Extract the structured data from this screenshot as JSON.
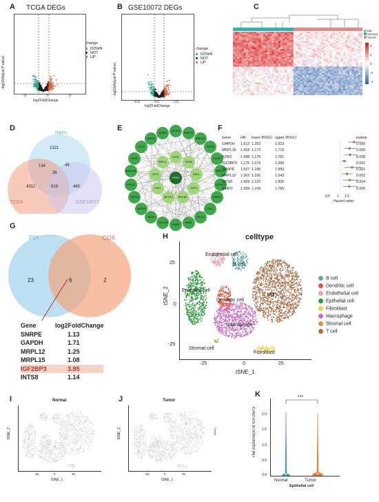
{
  "panels": {
    "A": {
      "label": "A",
      "title": "TCGA DEGs",
      "ylabel": "-log10(Adjust P-value)",
      "xlabel": "log2FoldChange",
      "xticks": [
        "-5",
        "0",
        "5"
      ],
      "yticks": [
        "0",
        "20",
        "40",
        "60",
        "80",
        "100"
      ],
      "legend_title": "change",
      "legend": [
        "DOWN",
        "NOT",
        "UP"
      ]
    },
    "B": {
      "label": "B",
      "title": "GSE10072 DEGs",
      "ylabel": "-log10(Adjust P-value)",
      "xlabel": "log2FoldChange",
      "xticks": [
        "-2.5",
        "0.0",
        "2.5"
      ],
      "legend_title": "change",
      "legend": [
        "DOWN",
        "NOT",
        "UP"
      ]
    },
    "C": {
      "label": "C",
      "legend_title": "group",
      "legend": [
        "Normal",
        "Tumor"
      ],
      "scale": [
        "4",
        "2",
        "0",
        "-2",
        "-4"
      ]
    },
    "D": {
      "label": "D",
      "sets": [
        "RBPs",
        "TCGA",
        "GSE10072"
      ],
      "counts": [
        "1321",
        "134",
        "49",
        "38",
        "4312",
        "919",
        "480"
      ]
    },
    "E": {
      "label": "E",
      "nodes": [
        "RPS6",
        "DUS6",
        "NPM3",
        "GNL3",
        "SOF3",
        "RPL38L",
        "METTL1",
        "PUS7",
        "CKC1",
        "RRP12",
        "EEF1E1",
        "HEATR1",
        "MRPL15",
        "TOP2A",
        "CYCR1",
        "MRPL12",
        "IGF2BP3",
        "SNRPE",
        "CDK1",
        "RPL39",
        "PARN",
        "PKM2C",
        "POLR2E",
        "INTS8",
        "ZNF700",
        "GAPDH",
        "EXOSC",
        "MAGOHB",
        "SZH1",
        "DZH2",
        "BOLA3",
        "NCBP2"
      ]
    },
    "F": {
      "label": "F",
      "headers": [
        "Gene",
        "HR",
        "lower 95%CI",
        "upper 95%CI",
        "pvalue"
      ],
      "rows": [
        [
          "GAPDH",
          "1.613",
          "1.353",
          "1.923",
          "0.000"
        ],
        [
          "MRPL15",
          "1.418",
          "1.172",
          "1.715",
          "0.000"
        ],
        [
          "BZW2",
          "1.438",
          "1.175",
          "1.761",
          "0.000"
        ],
        [
          "IGF2BP3",
          "1.176",
          "1.073",
          "1.289",
          "0.001"
        ],
        [
          "SNRPE",
          "1.527",
          "1.196",
          "1.950",
          "0.001"
        ],
        [
          "MRPL12",
          "1.303",
          "1.100",
          "1.543",
          "0.002"
        ],
        [
          "INTS8",
          "1.429",
          "1.122",
          "1.820",
          "0.004"
        ],
        [
          "AIMP2",
          "1.399",
          "1.109",
          "1.765",
          "0.005"
        ]
      ],
      "axis_ticks": [
        "0.5",
        "1",
        "1.5"
      ],
      "axis_label": "Hazard ratios"
    },
    "G": {
      "label": "G",
      "sets": [
        "PPI",
        "COX"
      ],
      "counts": [
        "23",
        "6",
        "2"
      ],
      "table_header": [
        "Gene",
        "log2FoldChange"
      ],
      "table": [
        [
          "SNRPE",
          "1.13"
        ],
        [
          "GAPDH",
          "1.71"
        ],
        [
          "MRPL12",
          "1.25"
        ],
        [
          "MRPL15",
          "1.08"
        ],
        [
          "IGF2BP3",
          "3.95"
        ],
        [
          "INTS8",
          "1.14"
        ]
      ]
    },
    "H": {
      "label": "H",
      "title": "celltype",
      "xlabel": "tSNE_1",
      "ylabel": "tSNE_2",
      "xticks": [
        "-25",
        "0",
        "25"
      ],
      "yticks": [
        "25",
        "0",
        "-25"
      ],
      "clusters": [
        "Endothelial cell",
        "B cell",
        "Epithelial cell",
        "Dendritic cell",
        "T cell",
        "Macrophage",
        "Stromal cell",
        "Fibroblast"
      ],
      "legend": [
        {
          "name": "B cell",
          "color": "#5aa9a7"
        },
        {
          "name": "Dendritic cell",
          "color": "#e8503a"
        },
        {
          "name": "Endothelial cell",
          "color": "#e8a5b4"
        },
        {
          "name": "Epithelial cell",
          "color": "#2e9b3e"
        },
        {
          "name": "Fibroblast",
          "color": "#f0d23a"
        },
        {
          "name": "Macrophage",
          "color": "#c46fc1"
        },
        {
          "name": "Stromal cell",
          "color": "#d19a3a"
        },
        {
          "name": "T cell",
          "color": "#a9704a"
        }
      ]
    },
    "I": {
      "label": "I",
      "title": "Normal",
      "xlabel": "tSNE_1",
      "ylabel": "tSNE_2",
      "xticks": [
        "-25",
        "0",
        "25"
      ]
    },
    "J": {
      "label": "J",
      "title": "Tumor",
      "xlabel": "tSNE_1",
      "ylabel": "tSNE_2",
      "xticks": [
        "-25",
        "0",
        "25"
      ],
      "side": "Tumor"
    },
    "K": {
      "label": "K",
      "ylabel": "The expression of IGF2BP3",
      "xlabel": "Epithelial cell",
      "categories": [
        "Normal",
        "Tumor"
      ],
      "yticks": [
        "0.0",
        "0.5",
        "1.0",
        "1.5",
        "2.0"
      ],
      "sig": "***"
    }
  }
}
